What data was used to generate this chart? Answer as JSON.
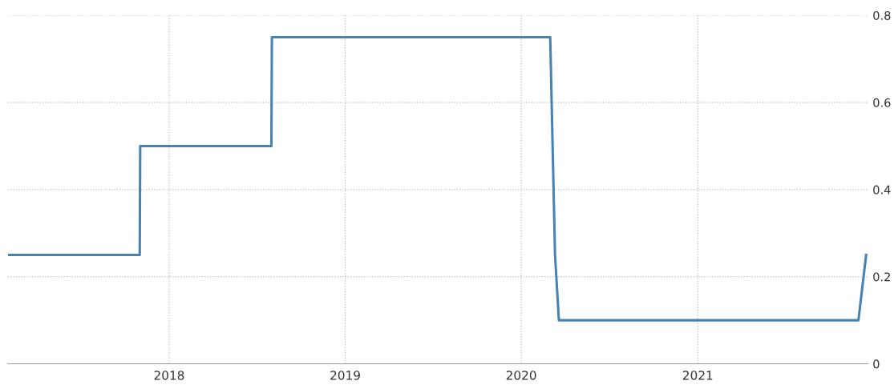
{
  "chart_data": {
    "type": "line",
    "x": [
      "2017-02-01",
      "2017-11-01",
      "2017-11-02",
      "2018-08-01",
      "2018-08-02",
      "2020-03-01",
      "2020-03-11",
      "2020-03-19",
      "2021-11-30",
      "2021-12-16"
    ],
    "series": [
      {
        "color": "#4682b4",
        "values": [
          0.25,
          0.25,
          0.5,
          0.5,
          0.75,
          0.75,
          0.25,
          0.1,
          0.1,
          0.25
        ]
      }
    ],
    "xlim": [
      "2017-02-01",
      "2021-12-20"
    ],
    "xticks": [
      {
        "value": "2018-01-01",
        "label": "2018"
      },
      {
        "value": "2019-01-01",
        "label": "2019"
      },
      {
        "value": "2020-01-01",
        "label": "2020"
      },
      {
        "value": "2021-01-01",
        "label": "2021"
      }
    ],
    "ylim": [
      0,
      0.8
    ],
    "yticks": [
      0,
      0.2,
      0.4,
      0.6,
      0.8
    ],
    "grid": true,
    "line_style": "solid",
    "marker": "none"
  }
}
